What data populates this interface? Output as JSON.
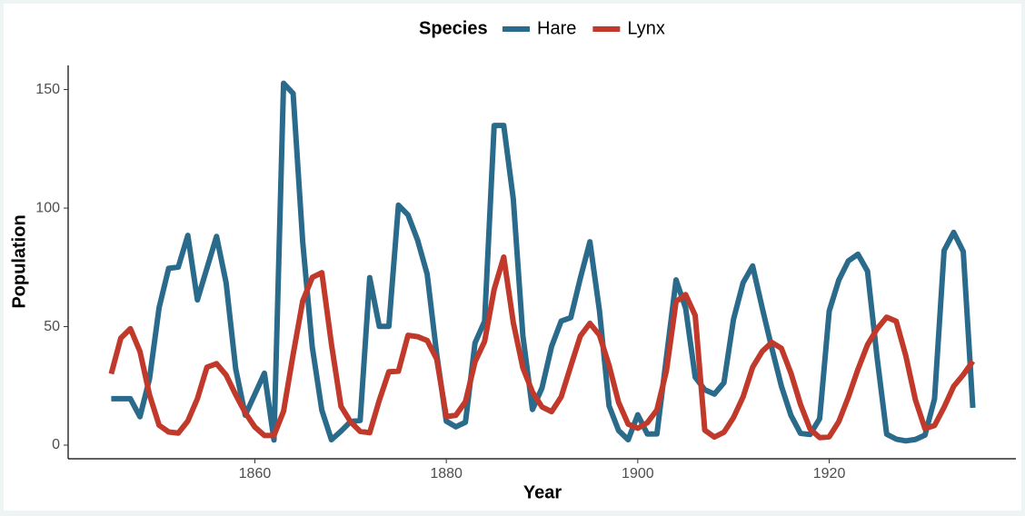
{
  "chart_data": {
    "type": "line",
    "x_label": "Year",
    "y_label": "Population",
    "legend_title": "Species",
    "legend_position": "top",
    "x": [
      1845,
      1846,
      1847,
      1848,
      1849,
      1850,
      1851,
      1852,
      1853,
      1854,
      1855,
      1856,
      1857,
      1858,
      1859,
      1860,
      1861,
      1862,
      1863,
      1864,
      1865,
      1866,
      1867,
      1868,
      1869,
      1870,
      1871,
      1872,
      1873,
      1874,
      1875,
      1876,
      1877,
      1878,
      1879,
      1880,
      1881,
      1882,
      1883,
      1884,
      1885,
      1886,
      1887,
      1888,
      1889,
      1890,
      1891,
      1892,
      1893,
      1894,
      1895,
      1896,
      1897,
      1898,
      1899,
      1900,
      1901,
      1902,
      1903,
      1904,
      1905,
      1906,
      1907,
      1908,
      1909,
      1910,
      1911,
      1912,
      1913,
      1914,
      1915,
      1916,
      1917,
      1918,
      1919,
      1920,
      1921,
      1922,
      1923,
      1924,
      1925,
      1926,
      1927,
      1928,
      1929,
      1930,
      1931,
      1932,
      1933,
      1934,
      1935
    ],
    "series": [
      {
        "name": "Hare",
        "color": "#2a6a8a",
        "values": [
          19.58,
          19.6,
          19.61,
          11.99,
          28.04,
          58.0,
          74.6,
          75.09,
          88.48,
          61.28,
          74.67,
          88.06,
          68.51,
          32.19,
          12.64,
          21.49,
          30.35,
          2.18,
          152.65,
          148.36,
          85.81,
          41.41,
          14.75,
          2.28,
          5.91,
          9.95,
          10.44,
          70.64,
          50.12,
          50.13,
          101.25,
          97.12,
          86.51,
          72.17,
          38.32,
          10.11,
          7.74,
          9.67,
          43.12,
          52.21,
          134.85,
          134.86,
          103.79,
          46.1,
          15.03,
          24.2,
          41.65,
          52.34,
          53.78,
          70.4,
          85.81,
          56.69,
          16.59,
          6.16,
          2.3,
          12.82,
          4.72,
          4.73,
          37.22,
          69.72,
          57.78,
          28.68,
          23.37,
          21.54,
          26.34,
          53.1,
          68.48,
          75.58,
          57.92,
          40.97,
          24.95,
          12.59,
          4.97,
          4.5,
          11.21,
          56.6,
          69.63,
          77.74,
          80.53,
          73.38,
          36.93,
          4.64,
          2.54,
          1.8,
          2.39,
          4.23,
          19.52,
          82.11,
          89.76,
          81.66,
          15.76
        ]
      },
      {
        "name": "Lynx",
        "color": "#c0392b",
        "values": [
          30.09,
          45.15,
          49.15,
          39.52,
          21.23,
          8.42,
          5.56,
          5.08,
          10.17,
          19.6,
          32.91,
          34.38,
          29.59,
          21.3,
          13.69,
          7.65,
          4.08,
          4.09,
          14.33,
          38.22,
          60.78,
          70.77,
          72.77,
          42.68,
          16.39,
          9.83,
          5.8,
          5.26,
          18.91,
          30.95,
          31.18,
          46.34,
          45.77,
          44.15,
          36.33,
          12.03,
          12.6,
          18.34,
          35.14,
          43.77,
          65.69,
          79.35,
          51.65,
          32.59,
          22.45,
          16.13,
          14.12,
          20.38,
          33.33,
          46.0,
          51.41,
          46.43,
          33.68,
          18.01,
          8.86,
          7.13,
          9.47,
          14.86,
          31.47,
          60.57,
          63.51,
          54.7,
          6.3,
          3.41,
          5.44,
          11.65,
          20.35,
          32.88,
          39.55,
          43.36,
          40.83,
          30.36,
          17.18,
          6.82,
          3.19,
          3.52,
          9.94,
          20.3,
          31.99,
          42.36,
          49.08,
          53.99,
          52.25,
          37.7,
          19.14,
          6.98,
          8.31,
          16.01,
          24.82,
          29.7,
          35.4
        ]
      }
    ],
    "xlim": [
      1840.5,
      1939.5
    ],
    "xticks": [
      1860,
      1880,
      1900,
      1920
    ],
    "ylim": [
      -5.74,
      160.19
    ],
    "yticks": [
      0,
      50,
      100,
      150
    ],
    "grid": false
  }
}
